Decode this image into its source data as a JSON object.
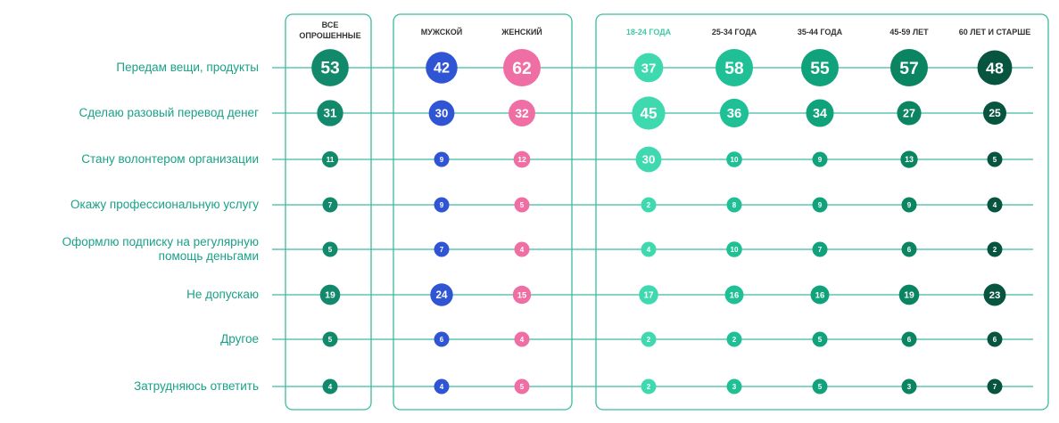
{
  "colors": {
    "label": "#1aa188",
    "line": "#3dbb9f",
    "group_border": "#3dbb9f",
    "header_dark": "#333333",
    "header_age_light": "#3fcaa6",
    "all": "#13896b",
    "male": "#2f55d4",
    "female": "#ef6ea3",
    "age_18_24": "#3fd9b0",
    "age_25_34": "#1fc096",
    "age_35_44": "#10a27b",
    "age_45_59": "#0b8461",
    "age_60": "#08553f",
    "bubble_text": "#ffffff"
  },
  "chart_data": {
    "type": "bubble-table",
    "rows": [
      "Передам вещи, продукты",
      "Сделаю разовый перевод денег",
      "Стану волонтером организации",
      "Окажу профессиональную услугу",
      "Оформлю подписку на регулярную помощь деньгами",
      "Не допускаю",
      "Другое",
      "Затрудняюсь ответить"
    ],
    "row_label_lines": [
      [
        "Передам вещи, продукты"
      ],
      [
        "Сделаю разовый перевод денег"
      ],
      [
        "Стану волонтером организации"
      ],
      [
        "Окажу профессиональную услугу"
      ],
      [
        "Оформлю подписку на регулярную",
        "помощь деньгами"
      ],
      [
        "Не допускаю"
      ],
      [
        "Другое"
      ],
      [
        "Затрудняюсь ответить"
      ]
    ],
    "groups": [
      {
        "columns": [
          {
            "header": [
              "ВСЕ",
              "ОПРОШЕННЫЕ"
            ],
            "color_key": "all",
            "header_color_key": "header_dark",
            "values": [
              53,
              31,
              11,
              7,
              5,
              19,
              5,
              4
            ]
          }
        ]
      },
      {
        "columns": [
          {
            "header": [
              "МУЖСКОЙ"
            ],
            "color_key": "male",
            "header_color_key": "header_dark",
            "values": [
              42,
              30,
              9,
              9,
              7,
              24,
              6,
              4
            ]
          },
          {
            "header": [
              "ЖЕНСКИЙ"
            ],
            "color_key": "female",
            "header_color_key": "header_dark",
            "values": [
              62,
              32,
              12,
              5,
              4,
              15,
              4,
              5
            ]
          }
        ]
      },
      {
        "columns": [
          {
            "header": [
              "18-24 ГОДА"
            ],
            "color_key": "age_18_24",
            "header_color_key": "header_age_light",
            "values": [
              37,
              45,
              30,
              2,
              4,
              17,
              2,
              2
            ]
          },
          {
            "header": [
              "25-34 ГОДА"
            ],
            "color_key": "age_25_34",
            "header_color_key": "header_dark",
            "values": [
              58,
              36,
              10,
              8,
              10,
              16,
              2,
              3
            ]
          },
          {
            "header": [
              "35-44 ГОДА"
            ],
            "color_key": "age_35_44",
            "header_color_key": "header_dark",
            "values": [
              55,
              34,
              9,
              9,
              7,
              16,
              5,
              5
            ]
          },
          {
            "header": [
              "45-59 ЛЕТ"
            ],
            "color_key": "age_45_59",
            "header_color_key": "header_dark",
            "values": [
              57,
              27,
              13,
              9,
              6,
              19,
              6,
              3
            ]
          },
          {
            "header": [
              "60 ЛЕТ И СТАРШЕ"
            ],
            "color_key": "age_60",
            "header_color_key": "header_dark",
            "values": [
              48,
              25,
              5,
              4,
              2,
              23,
              6,
              7
            ]
          }
        ]
      }
    ]
  }
}
